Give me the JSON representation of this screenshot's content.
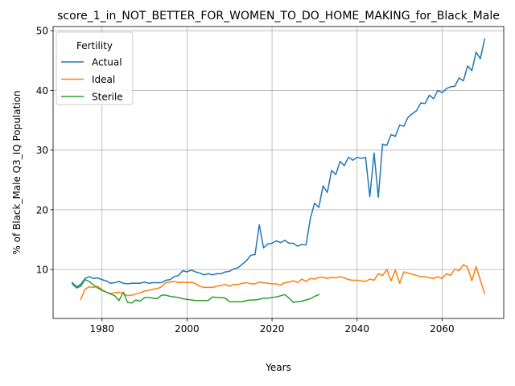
{
  "chart_data": {
    "type": "line",
    "title": "score_1_in_NOT_BETTER_FOR_WOMEN_TO_DO_HOME_MAKING_for_Black_Male",
    "xlabel": "Years",
    "ylabel": "% of Black_Male Q3_IQ Population",
    "xlim": [
      1968.5,
      2074.5
    ],
    "ylim": [
      1.8,
      50.7
    ],
    "x_ticks": [
      1980,
      2000,
      2020,
      2040,
      2060
    ],
    "y_ticks": [
      10,
      20,
      30,
      40,
      50
    ],
    "grid": true,
    "legend": {
      "title": "Fertility",
      "placement": "top-left"
    },
    "series": [
      {
        "name": "Actual",
        "color": "#1f77b4",
        "x": [
          1973,
          1974,
          1975,
          1976,
          1977,
          1978,
          1979,
          1980,
          1981,
          1982,
          1983,
          1984,
          1985,
          1986,
          1987,
          1988,
          1989,
          1990,
          1991,
          1992,
          1993,
          1994,
          1995,
          1996,
          1997,
          1998,
          1999,
          2000,
          2001,
          2002,
          2003,
          2004,
          2005,
          2006,
          2007,
          2008,
          2009,
          2010,
          2011,
          2012,
          2013,
          2014,
          2015,
          2016,
          2017,
          2018,
          2019,
          2020,
          2021,
          2022,
          2023,
          2024,
          2025,
          2026,
          2027,
          2028,
          2029,
          2030,
          2031,
          2032,
          2033,
          2034,
          2035,
          2036,
          2037,
          2038,
          2039,
          2040,
          2041,
          2042,
          2043,
          2044,
          2045,
          2046,
          2047,
          2048,
          2049,
          2050,
          2051,
          2052,
          2053,
          2054,
          2055,
          2056,
          2057,
          2058,
          2059,
          2060,
          2061,
          2062,
          2063,
          2064,
          2065,
          2066,
          2067,
          2068,
          2069,
          2070
        ],
        "values": [
          7.8,
          7.1,
          7.5,
          8.5,
          8.8,
          8.5,
          8.6,
          8.3,
          8.1,
          7.7,
          7.8,
          8.0,
          7.7,
          7.6,
          7.7,
          7.7,
          7.7,
          7.9,
          7.7,
          7.8,
          7.8,
          7.8,
          8.2,
          8.3,
          8.8,
          9.0,
          9.8,
          9.6,
          9.9,
          9.6,
          9.4,
          9.1,
          9.3,
          9.1,
          9.3,
          9.3,
          9.6,
          9.7,
          10.1,
          10.3,
          10.9,
          11.5,
          12.4,
          12.5,
          17.5,
          13.6,
          14.3,
          14.4,
          14.8,
          14.5,
          14.9,
          14.4,
          14.4,
          13.9,
          14.2,
          14.1,
          18.5,
          21.1,
          20.4,
          24.0,
          22.9,
          26.6,
          25.9,
          28.1,
          27.4,
          28.8,
          28.3,
          28.8,
          28.6,
          28.8,
          22.2,
          29.5,
          22.1,
          31.0,
          30.8,
          32.6,
          32.3,
          34.2,
          34.0,
          35.5,
          36.1,
          36.6,
          37.9,
          37.8,
          39.2,
          38.6,
          40.0,
          39.6,
          40.3,
          40.6,
          40.7,
          42.1,
          41.6,
          44.1,
          43.3,
          46.4,
          45.3,
          48.6
        ]
      },
      {
        "name": "Ideal",
        "color": "#ff7f0e",
        "x": [
          1975,
          1976,
          1977,
          1978,
          1979,
          1980,
          1981,
          1982,
          1983,
          1984,
          1985,
          1986,
          1987,
          1988,
          1989,
          1990,
          1991,
          1992,
          1993,
          1994,
          1995,
          1996,
          1997,
          1998,
          1999,
          2000,
          2001,
          2002,
          2003,
          2004,
          2005,
          2006,
          2007,
          2008,
          2009,
          2010,
          2011,
          2012,
          2013,
          2014,
          2015,
          2016,
          2017,
          2018,
          2019,
          2020,
          2021,
          2022,
          2023,
          2024,
          2025,
          2026,
          2027,
          2028,
          2029,
          2030,
          2031,
          2032,
          2033,
          2034,
          2035,
          2036,
          2037,
          2038,
          2039,
          2040,
          2041,
          2042,
          2043,
          2044,
          2045,
          2046,
          2047,
          2048,
          2049,
          2050,
          2051,
          2052,
          2053,
          2054,
          2055,
          2056,
          2057,
          2058,
          2059,
          2060,
          2061,
          2062,
          2063,
          2064,
          2065,
          2066,
          2067,
          2068,
          2069,
          2070
        ],
        "values": [
          5.0,
          6.7,
          7.1,
          7.0,
          7.2,
          6.6,
          6.2,
          6.0,
          6.1,
          6.2,
          6.0,
          5.6,
          5.7,
          5.9,
          6.1,
          6.4,
          6.5,
          6.7,
          6.8,
          7.1,
          7.8,
          7.9,
          8.0,
          7.8,
          7.9,
          7.8,
          7.9,
          7.6,
          7.2,
          7.0,
          7.0,
          7.0,
          7.2,
          7.3,
          7.5,
          7.2,
          7.5,
          7.5,
          7.7,
          7.8,
          7.6,
          7.6,
          7.9,
          7.8,
          7.7,
          7.6,
          7.6,
          7.4,
          7.8,
          7.9,
          8.1,
          7.8,
          8.4,
          8.0,
          8.5,
          8.4,
          8.7,
          8.7,
          8.5,
          8.7,
          8.6,
          8.8,
          8.6,
          8.3,
          8.2,
          8.2,
          8.1,
          8.0,
          8.4,
          8.2,
          9.3,
          9.0,
          10.0,
          8.1,
          9.9,
          7.7,
          9.6,
          9.4,
          9.2,
          9.0,
          8.8,
          8.8,
          8.6,
          8.5,
          8.8,
          8.5,
          9.3,
          9.0,
          10.1,
          9.8,
          10.8,
          10.4,
          8.1,
          10.5,
          8.2,
          6.0
        ]
      },
      {
        "name": "Sterile",
        "color": "#2ca02c",
        "x": [
          1973,
          1974,
          1975,
          1976,
          1977,
          1978,
          1979,
          1980,
          1981,
          1982,
          1983,
          1984,
          1985,
          1986,
          1987,
          1988,
          1989,
          1990,
          1991,
          1992,
          1993,
          1994,
          1995,
          1996,
          1997,
          1998,
          1999,
          2000,
          2001,
          2002,
          2003,
          2004,
          2005,
          2006,
          2007,
          2008,
          2009,
          2010,
          2011,
          2012,
          2013,
          2014,
          2015,
          2016,
          2017,
          2018,
          2019,
          2020,
          2021,
          2022,
          2023,
          2024,
          2025,
          2026,
          2027,
          2028,
          2029,
          2030,
          2031
        ],
        "values": [
          7.6,
          6.9,
          7.2,
          8.3,
          8.0,
          7.4,
          6.9,
          6.5,
          6.2,
          5.9,
          5.6,
          4.8,
          6.2,
          4.5,
          4.4,
          4.9,
          4.7,
          5.3,
          5.3,
          5.2,
          5.1,
          5.7,
          5.7,
          5.5,
          5.4,
          5.3,
          5.1,
          5.0,
          4.9,
          4.8,
          4.8,
          4.8,
          4.8,
          5.4,
          5.3,
          5.3,
          5.2,
          4.6,
          4.6,
          4.6,
          4.6,
          4.8,
          4.9,
          4.9,
          5.0,
          5.2,
          5.2,
          5.3,
          5.4,
          5.6,
          5.8,
          5.2,
          4.5,
          4.6,
          4.7,
          4.9,
          5.1,
          5.5,
          5.8
        ]
      }
    ]
  }
}
